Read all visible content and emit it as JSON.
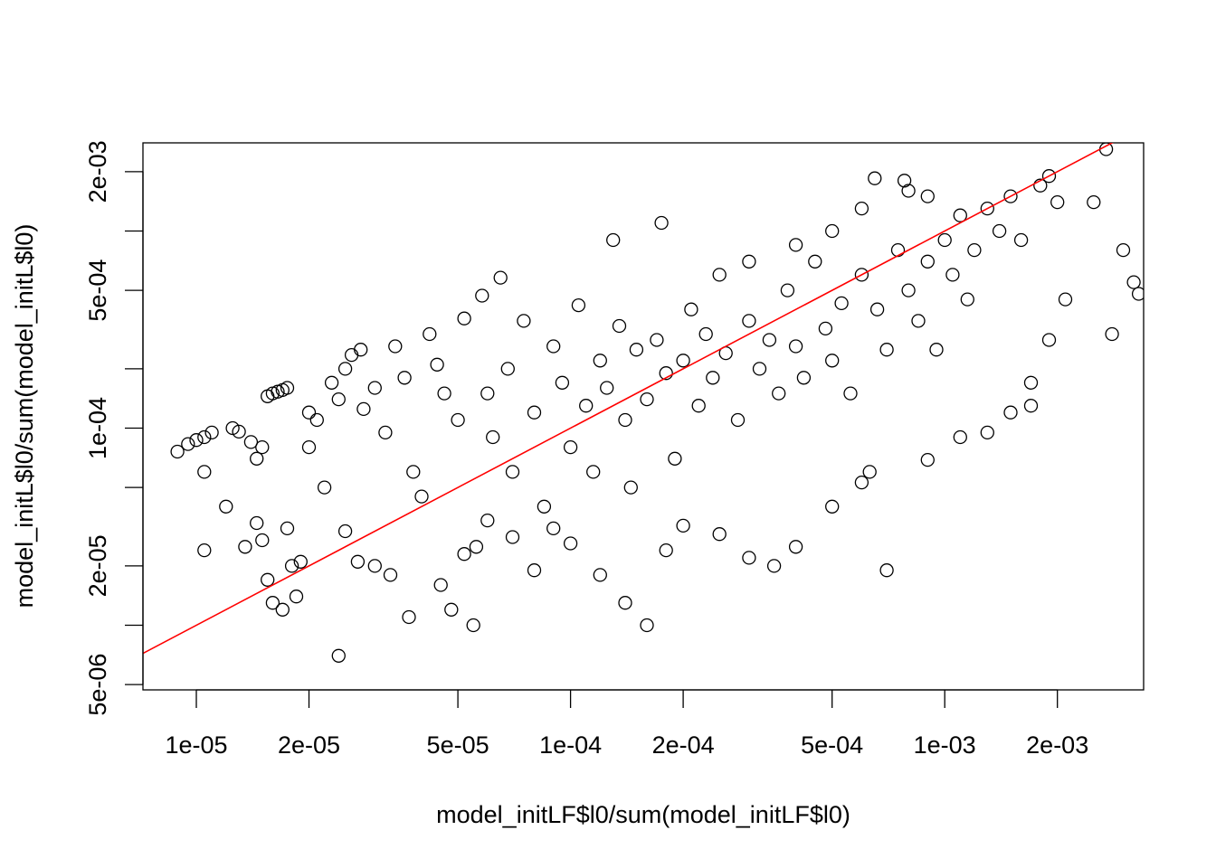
{
  "chart_data": {
    "type": "scatter",
    "title": "",
    "xlabel": "model_initLF$l0/sum(model_initLF$l0)",
    "ylabel": "model_initL$l0/sum(model_initL$l0)",
    "x_scale": "log",
    "y_scale": "log",
    "xlim": [
      7.2e-06,
      0.0034
    ],
    "ylim": [
      4.7e-06,
      0.0028
    ],
    "x_ticks": [
      {
        "value": 1e-05,
        "label": "1e-05"
      },
      {
        "value": 2e-05,
        "label": "2e-05"
      },
      {
        "value": 5e-05,
        "label": "5e-05"
      },
      {
        "value": 0.0001,
        "label": "1e-04"
      },
      {
        "value": 0.0002,
        "label": "2e-04"
      },
      {
        "value": 0.0005,
        "label": "5e-04"
      },
      {
        "value": 0.001,
        "label": "1e-03"
      },
      {
        "value": 0.002,
        "label": "2e-03"
      }
    ],
    "y_ticks": [
      {
        "value": 5e-06,
        "label": "5e-06"
      },
      {
        "value": 1e-05,
        "label": ""
      },
      {
        "value": 2e-05,
        "label": "2e-05"
      },
      {
        "value": 5e-05,
        "label": ""
      },
      {
        "value": 0.0001,
        "label": "1e-04"
      },
      {
        "value": 0.0002,
        "label": ""
      },
      {
        "value": 0.0005,
        "label": "5e-04"
      },
      {
        "value": 0.001,
        "label": ""
      },
      {
        "value": 0.002,
        "label": "2e-03"
      }
    ],
    "reference_line": {
      "type": "y=x",
      "color": "#ff0000"
    },
    "point_style": {
      "shape": "open-circle",
      "color": "#000000"
    },
    "points": [
      [
        8.9e-06,
        7.6e-05
      ],
      [
        9.5e-06,
        8.3e-05
      ],
      [
        1e-05,
        8.7e-05
      ],
      [
        1.05e-05,
        9e-05
      ],
      [
        1.1e-05,
        9.5e-05
      ],
      [
        1.05e-05,
        6e-05
      ],
      [
        1.05e-05,
        2.4e-05
      ],
      [
        1.25e-05,
        0.0001
      ],
      [
        1.3e-05,
        9.6e-05
      ],
      [
        1.4e-05,
        8.5e-05
      ],
      [
        1.45e-05,
        7e-05
      ],
      [
        1.5e-05,
        8e-05
      ],
      [
        1.55e-05,
        0.000145
      ],
      [
        1.6e-05,
        0.00015
      ],
      [
        1.65e-05,
        0.000153
      ],
      [
        1.7e-05,
        0.000156
      ],
      [
        1.75e-05,
        0.00016
      ],
      [
        1.45e-05,
        3.3e-05
      ],
      [
        1.5e-05,
        2.7e-05
      ],
      [
        1.55e-05,
        1.7e-05
      ],
      [
        1.6e-05,
        1.3e-05
      ],
      [
        1.7e-05,
        1.2e-05
      ],
      [
        1.8e-05,
        2e-05
      ],
      [
        1.9e-05,
        2.1e-05
      ],
      [
        1.75e-05,
        3.1e-05
      ],
      [
        1.85e-05,
        1.4e-05
      ],
      [
        2e-05,
        0.00012
      ],
      [
        2.1e-05,
        0.00011
      ],
      [
        2e-05,
        8e-05
      ],
      [
        2.2e-05,
        5e-05
      ],
      [
        2.3e-05,
        0.00017
      ],
      [
        2.4e-05,
        0.00014
      ],
      [
        2.5e-05,
        0.0002
      ],
      [
        2.6e-05,
        0.000235
      ],
      [
        2.75e-05,
        0.00025
      ],
      [
        2.4e-05,
        7e-06
      ],
      [
        2.5e-05,
        3e-05
      ],
      [
        2.7e-05,
        2.1e-05
      ],
      [
        2.8e-05,
        0.000125
      ],
      [
        3e-05,
        0.00016
      ],
      [
        3.2e-05,
        9.5e-05
      ],
      [
        3.4e-05,
        0.00026
      ],
      [
        3.6e-05,
        0.00018
      ],
      [
        3.8e-05,
        6e-05
      ],
      [
        4e-05,
        4.5e-05
      ],
      [
        4.2e-05,
        0.0003
      ],
      [
        4.4e-05,
        0.00021
      ],
      [
        4.6e-05,
        0.00015
      ],
      [
        4.8e-05,
        1.2e-05
      ],
      [
        5e-05,
        0.00011
      ],
      [
        5.2e-05,
        0.00036
      ],
      [
        5.5e-05,
        1e-05
      ],
      [
        5.6e-05,
        2.5e-05
      ],
      [
        5.8e-05,
        0.00047
      ],
      [
        6e-05,
        0.00015
      ],
      [
        6.2e-05,
        9e-05
      ],
      [
        6.5e-05,
        0.00058
      ],
      [
        6.8e-05,
        0.0002
      ],
      [
        7e-05,
        6e-05
      ],
      [
        7.5e-05,
        0.00035
      ],
      [
        8e-05,
        0.00012
      ],
      [
        8.5e-05,
        4e-05
      ],
      [
        9e-05,
        0.00026
      ],
      [
        9.5e-05,
        0.00017
      ],
      [
        0.0001,
        8e-05
      ],
      [
        0.000105,
        0.00042
      ],
      [
        0.00011,
        0.00013
      ],
      [
        0.000115,
        6e-05
      ],
      [
        0.00012,
        0.00022
      ],
      [
        0.000125,
        0.00016
      ],
      [
        0.00013,
        0.0009
      ],
      [
        0.000135,
        0.00033
      ],
      [
        0.00014,
        0.00011
      ],
      [
        0.000145,
        5e-05
      ],
      [
        0.00015,
        0.00025
      ],
      [
        0.00016,
        0.00014
      ],
      [
        0.00017,
        0.00028
      ],
      [
        0.000175,
        0.0011
      ],
      [
        0.00018,
        0.00019
      ],
      [
        0.00019,
        7e-05
      ],
      [
        0.0002,
        0.00022
      ],
      [
        0.00021,
        0.0004
      ],
      [
        0.00022,
        0.00013
      ],
      [
        0.00023,
        0.0003
      ],
      [
        0.00024,
        0.00018
      ],
      [
        0.00025,
        0.0006
      ],
      [
        0.00026,
        0.00024
      ],
      [
        0.00028,
        0.00011
      ],
      [
        0.0003,
        0.00035
      ],
      [
        0.00032,
        0.0002
      ],
      [
        0.00034,
        0.00028
      ],
      [
        0.00036,
        0.00015
      ],
      [
        0.00038,
        0.0005
      ],
      [
        0.0004,
        0.00026
      ],
      [
        0.00042,
        0.00018
      ],
      [
        0.00045,
        0.0007
      ],
      [
        0.00048,
        0.00032
      ],
      [
        0.0005,
        0.00022
      ],
      [
        0.00053,
        0.00043
      ],
      [
        0.00056,
        0.00015
      ],
      [
        0.0006,
        0.0006
      ],
      [
        0.00063,
        6e-05
      ],
      [
        0.00066,
        0.0004
      ],
      [
        0.0007,
        0.00025
      ],
      [
        0.00075,
        0.0008
      ],
      [
        0.0008,
        0.0005
      ],
      [
        0.00085,
        0.00035
      ],
      [
        0.0009,
        0.0007
      ],
      [
        0.00095,
        0.00025
      ],
      [
        0.001,
        0.0009
      ],
      [
        0.00105,
        0.0006
      ],
      [
        0.0011,
        0.0012
      ],
      [
        0.00115,
        0.00045
      ],
      [
        0.0012,
        0.0008
      ],
      [
        0.0013,
        0.0013
      ],
      [
        0.0014,
        0.001
      ],
      [
        0.0015,
        0.0015
      ],
      [
        0.0016,
        0.0009
      ],
      [
        0.0017,
        0.00013
      ],
      [
        0.0018,
        0.0017
      ],
      [
        0.0019,
        0.0019
      ],
      [
        0.002,
        0.0014
      ],
      [
        0.0021,
        0.00045
      ],
      [
        0.0025,
        0.0014
      ],
      [
        0.0027,
        0.0026
      ],
      [
        0.0028,
        0.0003
      ],
      [
        0.003,
        0.0008
      ],
      [
        0.0032,
        0.00055
      ],
      [
        0.0033,
        0.00048
      ],
      [
        1.2e-05,
        4e-05
      ],
      [
        1.35e-05,
        2.5e-05
      ],
      [
        3e-05,
        2e-05
      ],
      [
        3.3e-05,
        1.8e-05
      ],
      [
        3.7e-05,
        1.1e-05
      ],
      [
        4.5e-05,
        1.6e-05
      ],
      [
        5.2e-05,
        2.3e-05
      ],
      [
        6e-05,
        3.4e-05
      ],
      [
        7e-05,
        2.8e-05
      ],
      [
        8e-05,
        1.9e-05
      ],
      [
        9e-05,
        3.1e-05
      ],
      [
        0.0001,
        2.6e-05
      ],
      [
        0.00012,
        1.8e-05
      ],
      [
        0.00014,
        1.3e-05
      ],
      [
        0.00016,
        1e-05
      ],
      [
        0.00018,
        2.4e-05
      ],
      [
        0.0002,
        3.2e-05
      ],
      [
        0.00025,
        2.9e-05
      ],
      [
        0.0003,
        2.2e-05
      ],
      [
        0.00035,
        2e-05
      ],
      [
        0.0004,
        2.5e-05
      ],
      [
        0.0005,
        4e-05
      ],
      [
        0.0006,
        5.3e-05
      ],
      [
        0.0007,
        1.9e-05
      ],
      [
        0.0009,
        6.9e-05
      ],
      [
        0.0011,
        9e-05
      ],
      [
        0.0013,
        9.5e-05
      ],
      [
        0.0015,
        0.00012
      ],
      [
        0.0017,
        0.00017
      ],
      [
        0.0019,
        0.00028
      ],
      [
        0.0003,
        0.0007
      ],
      [
        0.0004,
        0.00085
      ],
      [
        0.0005,
        0.001
      ],
      [
        0.0006,
        0.0013
      ],
      [
        0.0008,
        0.0016
      ],
      [
        0.0009,
        0.0015
      ],
      [
        0.00065,
        0.00185
      ],
      [
        0.00078,
        0.0018
      ]
    ]
  }
}
